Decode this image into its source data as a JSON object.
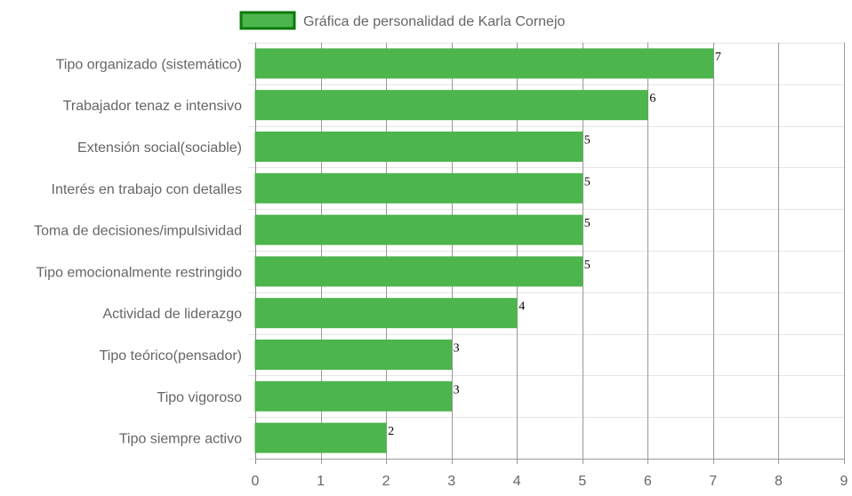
{
  "chart_data": {
    "type": "bar",
    "orientation": "horizontal",
    "categories": [
      "Tipo organizado (sistemático)",
      "Trabajador tenaz e intensivo",
      "Extensión social(sociable)",
      "Interés en trabajo con detalles",
      "Toma de decisiones/impulsividad",
      "Tipo emocionalmente restringido",
      "Actividad de liderazgo",
      "Tipo teórico(pensador)",
      "Tipo vigoroso",
      "Tipo siempre activo"
    ],
    "series": [
      {
        "name": "Gráfica de personalidad de Karla Cornejo",
        "values": [
          7,
          6,
          5,
          5,
          5,
          5,
          4,
          3,
          3,
          2
        ],
        "color": "#4cb54c",
        "border_color": "#0d7a0d"
      }
    ],
    "xlim": [
      0,
      9
    ],
    "xticks": [
      "0",
      "1",
      "2",
      "3",
      "4",
      "5",
      "6",
      "7",
      "8",
      "9"
    ],
    "grid": true,
    "legend": "top",
    "data_labels": true
  }
}
